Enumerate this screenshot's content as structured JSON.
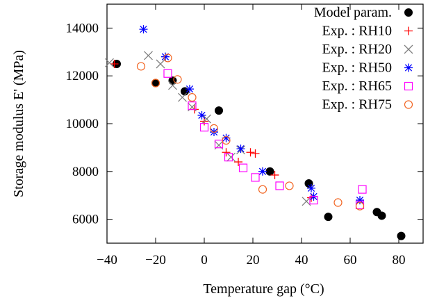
{
  "chart_data": {
    "type": "scatter",
    "xlabel": "Temperature gap (°C)",
    "ylabel": "Storage modulus E' (MPa)",
    "xlim": [
      -40,
      90
    ],
    "ylim": [
      5000,
      15000
    ],
    "xticks": [
      -40,
      -20,
      0,
      20,
      40,
      60,
      80
    ],
    "xtick_labels": [
      "−40",
      "−20",
      "0",
      "20",
      "40",
      "60",
      "80"
    ],
    "yticks": [
      6000,
      8000,
      10000,
      12000,
      14000
    ],
    "ytick_labels": [
      "6000",
      "8000",
      "10000",
      "12000",
      "14000"
    ],
    "legend_position": "top-right",
    "grid": false,
    "series": [
      {
        "name": "Model param.",
        "marker": "filled-circle",
        "color": "#000000",
        "points": [
          [
            -36,
            12500
          ],
          [
            -20,
            11700
          ],
          [
            -13,
            11800
          ],
          [
            -8,
            11350
          ],
          [
            6,
            10550
          ],
          [
            27,
            8000
          ],
          [
            43,
            7500
          ],
          [
            51,
            6100
          ],
          [
            71,
            6300
          ],
          [
            73,
            6150
          ],
          [
            81,
            5300
          ]
        ]
      },
      {
        "name": "Exp. : RH10",
        "marker": "plus",
        "color": "#ff0000",
        "points": [
          [
            -37,
            12500
          ],
          [
            -4,
            10600
          ],
          [
            0,
            10100
          ],
          [
            9,
            8800
          ],
          [
            14,
            8400
          ],
          [
            19,
            8800
          ],
          [
            21,
            8750
          ],
          [
            29,
            7850
          ],
          [
            44,
            6900
          ]
        ]
      },
      {
        "name": "Exp. : RH20",
        "marker": "cross",
        "color": "#808080",
        "points": [
          [
            -39,
            12550
          ],
          [
            -23,
            12850
          ],
          [
            -18,
            12500
          ],
          [
            -13,
            11600
          ],
          [
            -9,
            11100
          ],
          [
            -5,
            10700
          ],
          [
            1,
            10200
          ],
          [
            6,
            9100
          ],
          [
            11,
            8600
          ],
          [
            15,
            8900
          ],
          [
            42,
            6750
          ]
        ]
      },
      {
        "name": "Exp. : RH50",
        "marker": "star",
        "color": "#0000ff",
        "points": [
          [
            -25,
            13950
          ],
          [
            -16,
            12800
          ],
          [
            -6,
            11450
          ],
          [
            -1,
            10350
          ],
          [
            4,
            9650
          ],
          [
            9,
            9400
          ],
          [
            15,
            8950
          ],
          [
            24,
            8000
          ],
          [
            44,
            7300
          ],
          [
            45,
            6950
          ],
          [
            64,
            6800
          ]
        ]
      },
      {
        "name": "Exp. : RH65",
        "marker": "square",
        "color": "#ff00ff",
        "points": [
          [
            -15,
            12100
          ],
          [
            -5,
            10750
          ],
          [
            0,
            9850
          ],
          [
            6,
            9150
          ],
          [
            10,
            8600
          ],
          [
            16,
            8150
          ],
          [
            21,
            7750
          ],
          [
            31,
            7400
          ],
          [
            45,
            6800
          ],
          [
            64,
            6600
          ],
          [
            65,
            7250
          ]
        ]
      },
      {
        "name": "Exp. : RH75",
        "marker": "circle",
        "color": "#f26522",
        "points": [
          [
            -26,
            12400
          ],
          [
            -20,
            11700
          ],
          [
            -15,
            12750
          ],
          [
            -11,
            11850
          ],
          [
            -5,
            11100
          ],
          [
            4,
            9800
          ],
          [
            9,
            9300
          ],
          [
            24,
            7250
          ],
          [
            35,
            7400
          ],
          [
            55,
            6700
          ],
          [
            64,
            6550
          ]
        ]
      }
    ]
  }
}
